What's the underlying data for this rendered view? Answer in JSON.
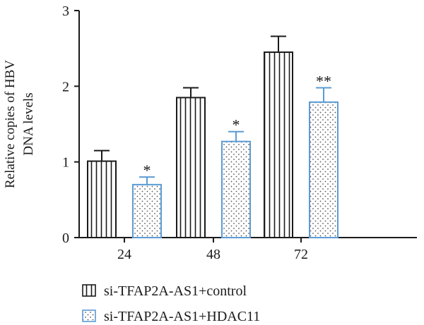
{
  "chart_data": {
    "type": "bar",
    "title": "",
    "xlabel": "",
    "ylabel_lines": [
      "Relative copies of HBV",
      "DNA levels"
    ],
    "categories": [
      "24",
      "48",
      "72"
    ],
    "ylim": [
      0,
      3
    ],
    "yticks": [
      "0",
      "1",
      "2",
      "3"
    ],
    "grid": false,
    "legend_position": "bottom-left",
    "series": [
      {
        "name": "si-TFAP2A-AS1+control",
        "values": [
          1.01,
          1.85,
          2.45
        ],
        "errors": [
          0.14,
          0.13,
          0.21
        ],
        "annotations": [
          "",
          "",
          ""
        ],
        "color": "#1a1a1a",
        "pattern": "vertical-stripes"
      },
      {
        "name": "si-TFAP2A-AS1+HDAC11",
        "values": [
          0.7,
          1.27,
          1.79
        ],
        "errors": [
          0.1,
          0.13,
          0.19
        ],
        "annotations": [
          "*",
          "*",
          "**"
        ],
        "color": "#5b9bd5",
        "pattern": "dots"
      }
    ]
  }
}
